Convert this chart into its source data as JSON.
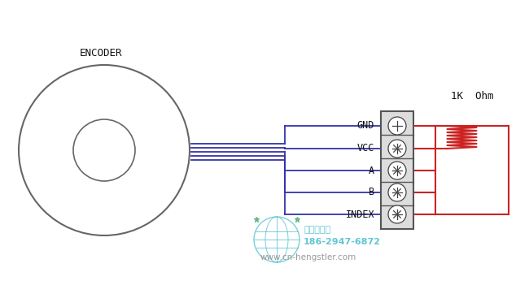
{
  "bg_color": "#ffffff",
  "encoder_text": "ENCODER",
  "ohm_text": "1K  Ohm",
  "label_gnd": "GND",
  "label_vcc": "VCC",
  "label_a": "A",
  "label_b": "B",
  "label_index": "INDEX",
  "wire_color": "#3333aa",
  "encoder_color": "#666666",
  "resistor_color": "#cc2222",
  "connector_bg": "#dddddd",
  "connector_border": "#555555",
  "text_color": "#111111",
  "watermark_color": "#44bbcc",
  "watermark_green": "#44aa66",
  "watermark_text1": "西安德伍拓",
  "watermark_text2": "186-2947-6872",
  "watermark_text3": "www.cn-hengstler.com"
}
